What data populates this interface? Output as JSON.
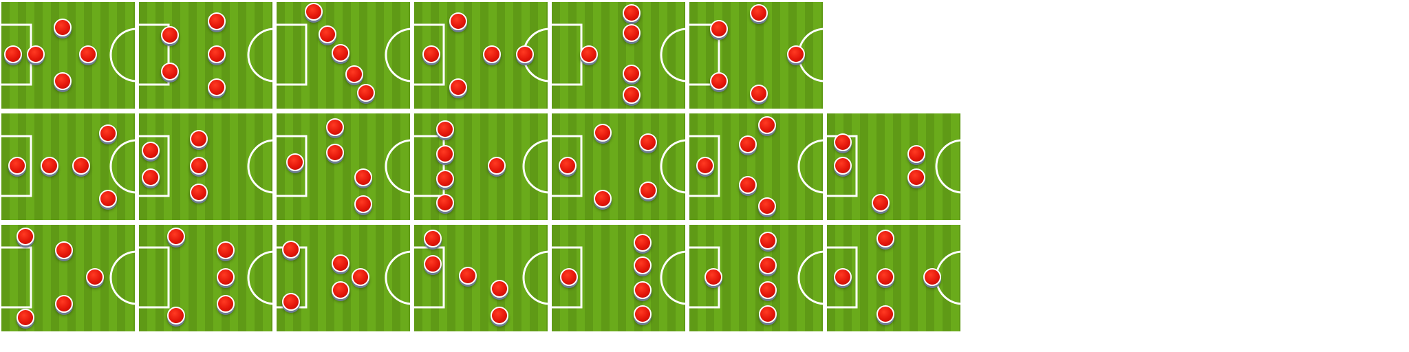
{
  "tiles": [
    {
      "players": [
        [
          0.09,
          0.49
        ],
        [
          0.26,
          0.49
        ],
        [
          0.46,
          0.24
        ],
        [
          0.65,
          0.49
        ],
        [
          0.46,
          0.74
        ]
      ]
    },
    {
      "players": [
        [
          0.23,
          0.31
        ],
        [
          0.23,
          0.65
        ],
        [
          0.58,
          0.18
        ],
        [
          0.58,
          0.49
        ],
        [
          0.58,
          0.8
        ]
      ]
    },
    {
      "players": [
        [
          0.28,
          0.09
        ],
        [
          0.38,
          0.3
        ],
        [
          0.48,
          0.48
        ],
        [
          0.58,
          0.68
        ],
        [
          0.67,
          0.85
        ]
      ]
    },
    {
      "players": [
        [
          0.13,
          0.49
        ],
        [
          0.33,
          0.18
        ],
        [
          0.33,
          0.8
        ],
        [
          0.58,
          0.49
        ],
        [
          0.83,
          0.49
        ]
      ]
    },
    {
      "players": [
        [
          0.28,
          0.49
        ],
        [
          0.6,
          0.1
        ],
        [
          0.6,
          0.29
        ],
        [
          0.6,
          0.67
        ],
        [
          0.6,
          0.87
        ]
      ]
    },
    {
      "players": [
        [
          0.22,
          0.25
        ],
        [
          0.22,
          0.74
        ],
        [
          0.52,
          0.1
        ],
        [
          0.52,
          0.86
        ],
        [
          0.8,
          0.49
        ]
      ]
    },
    {
      "players": [
        [
          0.12,
          0.49
        ],
        [
          0.36,
          0.49
        ],
        [
          0.6,
          0.49
        ],
        [
          0.8,
          0.19
        ],
        [
          0.8,
          0.8
        ]
      ]
    },
    {
      "players": [
        [
          0.09,
          0.35
        ],
        [
          0.09,
          0.6
        ],
        [
          0.45,
          0.24
        ],
        [
          0.45,
          0.49
        ],
        [
          0.45,
          0.74
        ]
      ]
    },
    {
      "players": [
        [
          0.14,
          0.46
        ],
        [
          0.44,
          0.13
        ],
        [
          0.44,
          0.37
        ],
        [
          0.65,
          0.6
        ],
        [
          0.65,
          0.85
        ]
      ]
    },
    {
      "players": [
        [
          0.23,
          0.15
        ],
        [
          0.23,
          0.38
        ],
        [
          0.23,
          0.61
        ],
        [
          0.23,
          0.84
        ],
        [
          0.62,
          0.49
        ]
      ]
    },
    {
      "players": [
        [
          0.12,
          0.49
        ],
        [
          0.38,
          0.18
        ],
        [
          0.38,
          0.8
        ],
        [
          0.72,
          0.27
        ],
        [
          0.72,
          0.72
        ]
      ]
    },
    {
      "players": [
        [
          0.12,
          0.49
        ],
        [
          0.44,
          0.29
        ],
        [
          0.44,
          0.67
        ],
        [
          0.58,
          0.11
        ],
        [
          0.58,
          0.87
        ]
      ]
    },
    {
      "players": [
        [
          0.12,
          0.27
        ],
        [
          0.12,
          0.49
        ],
        [
          0.4,
          0.84
        ],
        [
          0.67,
          0.38
        ],
        [
          0.67,
          0.6
        ]
      ]
    },
    {
      "players": [
        [
          0.18,
          0.11
        ],
        [
          0.18,
          0.87
        ],
        [
          0.47,
          0.24
        ],
        [
          0.47,
          0.74
        ],
        [
          0.7,
          0.49
        ]
      ]
    },
    {
      "players": [
        [
          0.28,
          0.11
        ],
        [
          0.28,
          0.85
        ],
        [
          0.65,
          0.24
        ],
        [
          0.65,
          0.49
        ],
        [
          0.65,
          0.74
        ]
      ]
    },
    {
      "players": [
        [
          0.11,
          0.23
        ],
        [
          0.11,
          0.72
        ],
        [
          0.48,
          0.36
        ],
        [
          0.48,
          0.61
        ],
        [
          0.63,
          0.49
        ]
      ]
    },
    {
      "players": [
        [
          0.14,
          0.13
        ],
        [
          0.14,
          0.37
        ],
        [
          0.4,
          0.48
        ],
        [
          0.64,
          0.6
        ],
        [
          0.64,
          0.85
        ]
      ]
    },
    {
      "players": [
        [
          0.13,
          0.49
        ],
        [
          0.68,
          0.17
        ],
        [
          0.68,
          0.38
        ],
        [
          0.68,
          0.61
        ],
        [
          0.68,
          0.84
        ]
      ]
    },
    {
      "players": [
        [
          0.18,
          0.49
        ],
        [
          0.59,
          0.15
        ],
        [
          0.59,
          0.38
        ],
        [
          0.59,
          0.61
        ],
        [
          0.59,
          0.84
        ]
      ]
    },
    {
      "players": [
        [
          0.12,
          0.49
        ],
        [
          0.44,
          0.13
        ],
        [
          0.44,
          0.49
        ],
        [
          0.44,
          0.84
        ],
        [
          0.79,
          0.49
        ]
      ]
    }
  ]
}
